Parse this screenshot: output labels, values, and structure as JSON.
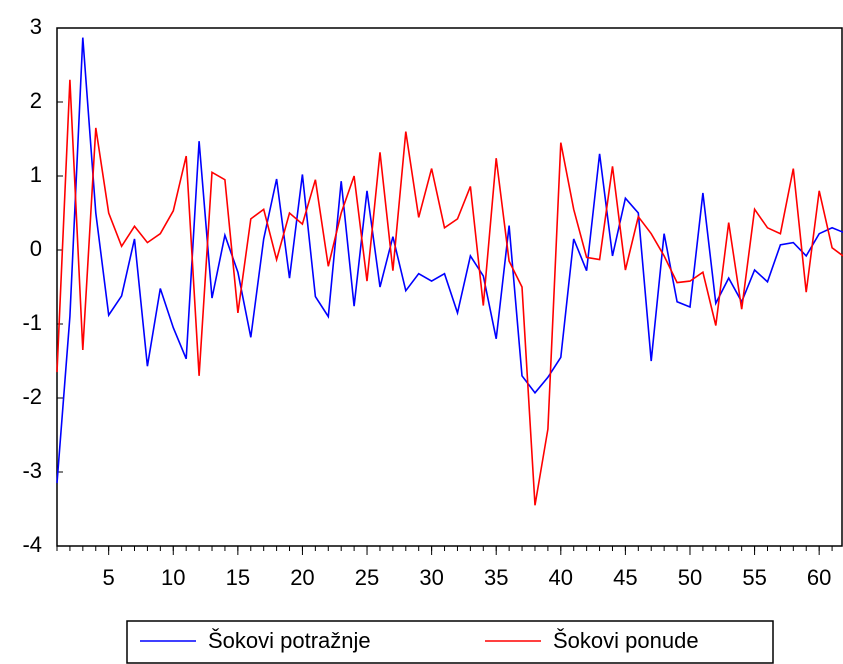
{
  "chart_data": {
    "type": "line",
    "x": [
      1,
      2,
      3,
      4,
      5,
      6,
      7,
      8,
      9,
      10,
      11,
      12,
      13,
      14,
      15,
      16,
      17,
      18,
      19,
      20,
      21,
      22,
      23,
      24,
      25,
      26,
      27,
      28,
      29,
      30,
      31,
      32,
      33,
      34,
      35,
      36,
      37,
      38,
      39,
      40,
      41,
      42,
      43,
      44,
      45,
      46,
      47,
      48,
      49,
      50,
      51,
      52,
      53,
      54,
      55,
      56,
      57,
      58,
      59,
      60,
      61,
      62
    ],
    "series": [
      {
        "name": "Šokovi potražnje",
        "color": "#0000ff",
        "values": [
          -3.15,
          -0.9,
          2.87,
          0.5,
          -0.88,
          -0.62,
          0.15,
          -1.57,
          -0.52,
          -1.05,
          -1.47,
          1.47,
          -0.65,
          0.2,
          -0.3,
          -1.18,
          0.15,
          0.96,
          -0.38,
          1.02,
          -0.63,
          -0.9,
          0.93,
          -0.76,
          0.8,
          -0.5,
          0.18,
          -0.55,
          -0.32,
          -0.42,
          -0.32,
          -0.85,
          -0.08,
          -0.35,
          -1.2,
          0.33,
          -1.7,
          -1.93,
          -1.72,
          -1.45,
          0.15,
          -0.28,
          1.3,
          -0.08,
          0.7,
          0.5,
          -1.5,
          0.22,
          -0.7,
          -0.77,
          0.77,
          -0.72,
          -0.38,
          -0.7,
          -0.27,
          -0.43,
          0.07,
          0.1,
          -0.08,
          0.22,
          0.3,
          0.23
        ]
      },
      {
        "name": "Šokovi ponude",
        "color": "#ff0000",
        "values": [
          -1.65,
          2.3,
          -1.35,
          1.65,
          0.5,
          0.05,
          0.32,
          0.1,
          0.22,
          0.53,
          1.27,
          -1.7,
          1.05,
          0.95,
          -0.85,
          0.42,
          0.55,
          -0.13,
          0.5,
          0.35,
          0.95,
          -0.22,
          0.5,
          1.0,
          -0.42,
          1.32,
          -0.28,
          1.6,
          0.44,
          1.1,
          0.3,
          0.42,
          0.86,
          -0.75,
          1.24,
          -0.15,
          -0.5,
          -3.45,
          -2.42,
          1.45,
          0.55,
          -0.1,
          -0.13,
          1.13,
          -0.27,
          0.45,
          0.22,
          -0.08,
          -0.44,
          -0.42,
          -0.3,
          -1.02,
          0.37,
          -0.8,
          0.55,
          0.3,
          0.22,
          1.1,
          -0.57,
          0.8,
          0.03,
          -0.1
        ]
      }
    ],
    "xlim": [
      1,
      62
    ],
    "xticks": [
      5,
      10,
      15,
      20,
      25,
      30,
      35,
      40,
      45,
      50,
      55,
      60
    ],
    "ylim": [
      -4,
      3
    ],
    "yticks": [
      -4,
      -3,
      -2,
      -1,
      0,
      1,
      2,
      3
    ],
    "legend": "bottom"
  }
}
